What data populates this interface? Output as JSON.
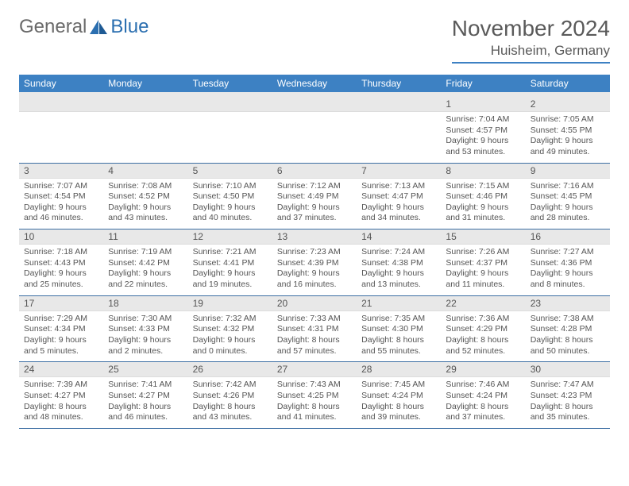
{
  "brand": {
    "part1": "General",
    "part2": "Blue"
  },
  "title": "November 2024",
  "location": "Huisheim, Germany",
  "colors": {
    "accent": "#3d81c3",
    "header_bg": "#3d81c3",
    "header_text": "#ffffff",
    "daynum_bg": "#e8e8e8",
    "text": "#555555",
    "divider": "#3d6fa3"
  },
  "day_labels": [
    "Sunday",
    "Monday",
    "Tuesday",
    "Wednesday",
    "Thursday",
    "Friday",
    "Saturday"
  ],
  "weeks": [
    [
      {
        "n": "",
        "sr": "",
        "ss": "",
        "dl": ""
      },
      {
        "n": "",
        "sr": "",
        "ss": "",
        "dl": ""
      },
      {
        "n": "",
        "sr": "",
        "ss": "",
        "dl": ""
      },
      {
        "n": "",
        "sr": "",
        "ss": "",
        "dl": ""
      },
      {
        "n": "",
        "sr": "",
        "ss": "",
        "dl": ""
      },
      {
        "n": "1",
        "sr": "Sunrise: 7:04 AM",
        "ss": "Sunset: 4:57 PM",
        "dl": "Daylight: 9 hours and 53 minutes."
      },
      {
        "n": "2",
        "sr": "Sunrise: 7:05 AM",
        "ss": "Sunset: 4:55 PM",
        "dl": "Daylight: 9 hours and 49 minutes."
      }
    ],
    [
      {
        "n": "3",
        "sr": "Sunrise: 7:07 AM",
        "ss": "Sunset: 4:54 PM",
        "dl": "Daylight: 9 hours and 46 minutes."
      },
      {
        "n": "4",
        "sr": "Sunrise: 7:08 AM",
        "ss": "Sunset: 4:52 PM",
        "dl": "Daylight: 9 hours and 43 minutes."
      },
      {
        "n": "5",
        "sr": "Sunrise: 7:10 AM",
        "ss": "Sunset: 4:50 PM",
        "dl": "Daylight: 9 hours and 40 minutes."
      },
      {
        "n": "6",
        "sr": "Sunrise: 7:12 AM",
        "ss": "Sunset: 4:49 PM",
        "dl": "Daylight: 9 hours and 37 minutes."
      },
      {
        "n": "7",
        "sr": "Sunrise: 7:13 AM",
        "ss": "Sunset: 4:47 PM",
        "dl": "Daylight: 9 hours and 34 minutes."
      },
      {
        "n": "8",
        "sr": "Sunrise: 7:15 AM",
        "ss": "Sunset: 4:46 PM",
        "dl": "Daylight: 9 hours and 31 minutes."
      },
      {
        "n": "9",
        "sr": "Sunrise: 7:16 AM",
        "ss": "Sunset: 4:45 PM",
        "dl": "Daylight: 9 hours and 28 minutes."
      }
    ],
    [
      {
        "n": "10",
        "sr": "Sunrise: 7:18 AM",
        "ss": "Sunset: 4:43 PM",
        "dl": "Daylight: 9 hours and 25 minutes."
      },
      {
        "n": "11",
        "sr": "Sunrise: 7:19 AM",
        "ss": "Sunset: 4:42 PM",
        "dl": "Daylight: 9 hours and 22 minutes."
      },
      {
        "n": "12",
        "sr": "Sunrise: 7:21 AM",
        "ss": "Sunset: 4:41 PM",
        "dl": "Daylight: 9 hours and 19 minutes."
      },
      {
        "n": "13",
        "sr": "Sunrise: 7:23 AM",
        "ss": "Sunset: 4:39 PM",
        "dl": "Daylight: 9 hours and 16 minutes."
      },
      {
        "n": "14",
        "sr": "Sunrise: 7:24 AM",
        "ss": "Sunset: 4:38 PM",
        "dl": "Daylight: 9 hours and 13 minutes."
      },
      {
        "n": "15",
        "sr": "Sunrise: 7:26 AM",
        "ss": "Sunset: 4:37 PM",
        "dl": "Daylight: 9 hours and 11 minutes."
      },
      {
        "n": "16",
        "sr": "Sunrise: 7:27 AM",
        "ss": "Sunset: 4:36 PM",
        "dl": "Daylight: 9 hours and 8 minutes."
      }
    ],
    [
      {
        "n": "17",
        "sr": "Sunrise: 7:29 AM",
        "ss": "Sunset: 4:34 PM",
        "dl": "Daylight: 9 hours and 5 minutes."
      },
      {
        "n": "18",
        "sr": "Sunrise: 7:30 AM",
        "ss": "Sunset: 4:33 PM",
        "dl": "Daylight: 9 hours and 2 minutes."
      },
      {
        "n": "19",
        "sr": "Sunrise: 7:32 AM",
        "ss": "Sunset: 4:32 PM",
        "dl": "Daylight: 9 hours and 0 minutes."
      },
      {
        "n": "20",
        "sr": "Sunrise: 7:33 AM",
        "ss": "Sunset: 4:31 PM",
        "dl": "Daylight: 8 hours and 57 minutes."
      },
      {
        "n": "21",
        "sr": "Sunrise: 7:35 AM",
        "ss": "Sunset: 4:30 PM",
        "dl": "Daylight: 8 hours and 55 minutes."
      },
      {
        "n": "22",
        "sr": "Sunrise: 7:36 AM",
        "ss": "Sunset: 4:29 PM",
        "dl": "Daylight: 8 hours and 52 minutes."
      },
      {
        "n": "23",
        "sr": "Sunrise: 7:38 AM",
        "ss": "Sunset: 4:28 PM",
        "dl": "Daylight: 8 hours and 50 minutes."
      }
    ],
    [
      {
        "n": "24",
        "sr": "Sunrise: 7:39 AM",
        "ss": "Sunset: 4:27 PM",
        "dl": "Daylight: 8 hours and 48 minutes."
      },
      {
        "n": "25",
        "sr": "Sunrise: 7:41 AM",
        "ss": "Sunset: 4:27 PM",
        "dl": "Daylight: 8 hours and 46 minutes."
      },
      {
        "n": "26",
        "sr": "Sunrise: 7:42 AM",
        "ss": "Sunset: 4:26 PM",
        "dl": "Daylight: 8 hours and 43 minutes."
      },
      {
        "n": "27",
        "sr": "Sunrise: 7:43 AM",
        "ss": "Sunset: 4:25 PM",
        "dl": "Daylight: 8 hours and 41 minutes."
      },
      {
        "n": "28",
        "sr": "Sunrise: 7:45 AM",
        "ss": "Sunset: 4:24 PM",
        "dl": "Daylight: 8 hours and 39 minutes."
      },
      {
        "n": "29",
        "sr": "Sunrise: 7:46 AM",
        "ss": "Sunset: 4:24 PM",
        "dl": "Daylight: 8 hours and 37 minutes."
      },
      {
        "n": "30",
        "sr": "Sunrise: 7:47 AM",
        "ss": "Sunset: 4:23 PM",
        "dl": "Daylight: 8 hours and 35 minutes."
      }
    ]
  ]
}
